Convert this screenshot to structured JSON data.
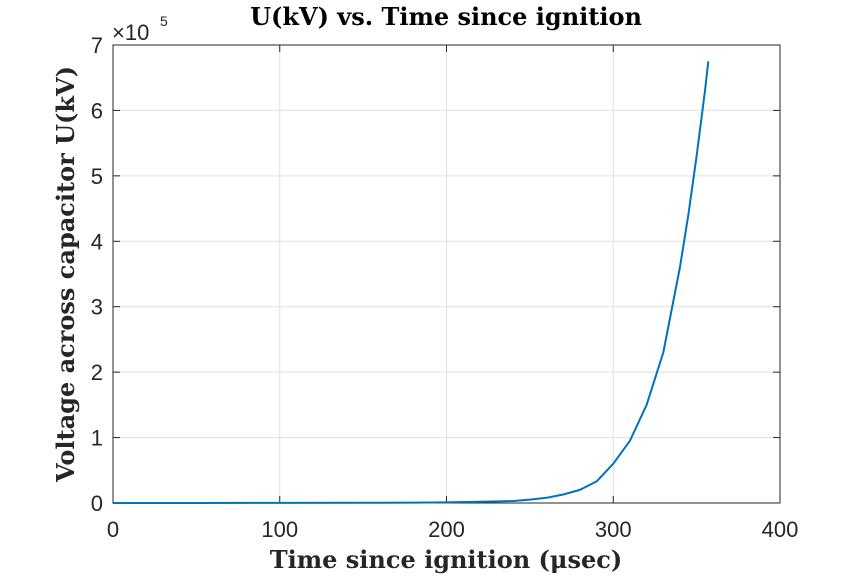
{
  "chart_data": {
    "type": "line",
    "title": "U(kV) vs. Time since ignition",
    "xlabel": "Time since ignition (μsec)",
    "ylabel": "Voltage across capacitor U(kV)",
    "exponent_base": "×10",
    "exponent_power": "5",
    "xlim": [
      0,
      400
    ],
    "ylim": [
      0,
      7
    ],
    "y_scale_factor": 100000,
    "xticks": [
      0,
      100,
      200,
      300,
      400
    ],
    "xtick_labels": [
      "0",
      "100",
      "200",
      "300",
      "400"
    ],
    "yticks": [
      0,
      1,
      2,
      3,
      4,
      5,
      6,
      7
    ],
    "ytick_labels": [
      "0",
      "1",
      "2",
      "3",
      "4",
      "5",
      "6",
      "7"
    ],
    "grid": true,
    "series": [
      {
        "color": "#0072bd",
        "x": [
          0,
          50,
          100,
          150,
          180,
          200,
          220,
          240,
          250,
          260,
          270,
          280,
          290,
          300,
          310,
          320,
          330,
          340,
          345,
          350,
          355,
          357
        ],
        "y": [
          0.0002,
          0.0005,
          0.0013,
          0.0034,
          0.006,
          0.009,
          0.018,
          0.03,
          0.052,
          0.08,
          0.13,
          0.2,
          0.33,
          0.6,
          0.95,
          1.5,
          2.3,
          3.6,
          4.4,
          5.3,
          6.3,
          6.75
        ]
      }
    ]
  }
}
